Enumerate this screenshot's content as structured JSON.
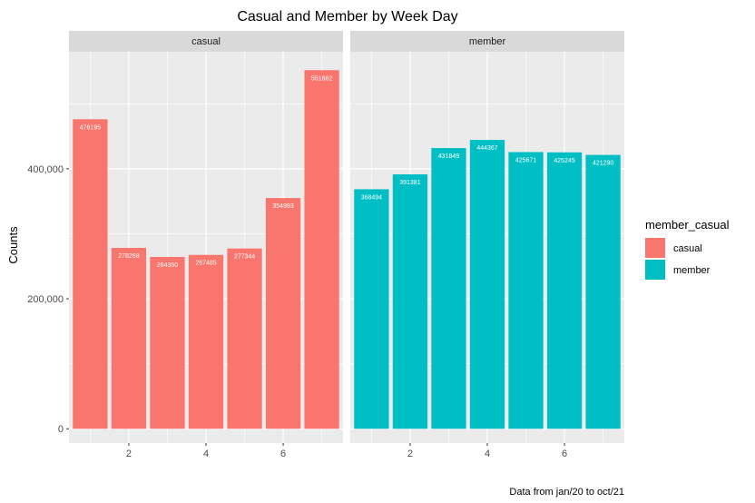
{
  "chart_data": {
    "type": "bar",
    "title": "Casual and Member by Week Day",
    "xlabel": "",
    "ylabel": "Counts",
    "caption": "Data from jan/20 to oct/21",
    "x": [
      1,
      2,
      3,
      4,
      5,
      6,
      7
    ],
    "x_ticks": [
      2,
      4,
      6
    ],
    "x_tick_labels": [
      "2",
      "4",
      "6"
    ],
    "xlim": [
      0.45,
      7.55
    ],
    "y_ticks": [
      0,
      200000,
      400000
    ],
    "y_tick_labels": [
      "0",
      "200,000",
      "400,000"
    ],
    "ylim": [
      -22000,
      580000
    ],
    "grid": true,
    "legend": {
      "title": "member_casual",
      "placement": "right",
      "entries": [
        "casual",
        "member"
      ]
    },
    "panels": [
      {
        "name": "casual",
        "color": "#F8766D",
        "values": [
          476195,
          278268,
          264350,
          267485,
          277344,
          354993,
          551682
        ],
        "labels": [
          "476195",
          "278268",
          "264350",
          "267485",
          "277344",
          "354993",
          "551682"
        ]
      },
      {
        "name": "member",
        "color": "#00BFC4",
        "values": [
          368494,
          391381,
          431849,
          444367,
          425671,
          425245,
          421290
        ],
        "labels": [
          "368494",
          "391381",
          "431849",
          "444367",
          "425671",
          "425245",
          "421290"
        ]
      }
    ],
    "colors": {
      "panel_background": "#EBEBEB",
      "strip_background": "#D9D9D9",
      "grid_major": "#FFFFFF",
      "casual": "#F8766D",
      "member": "#00BFC4"
    }
  }
}
